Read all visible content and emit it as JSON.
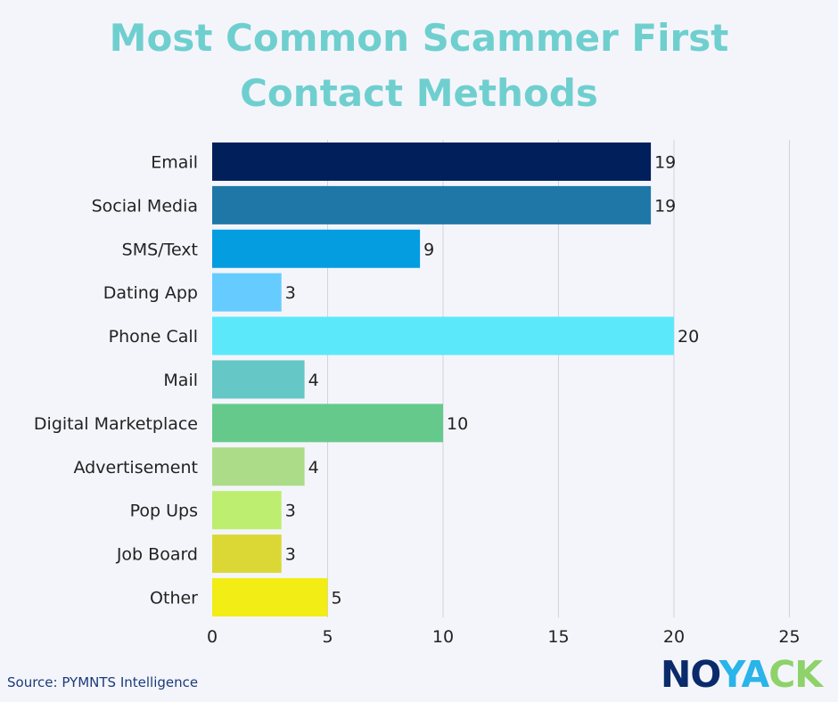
{
  "chart_data": {
    "type": "bar",
    "orientation": "horizontal",
    "title_lines": [
      "Most Common Scammer First",
      "Contact Methods"
    ],
    "categories": [
      "Email",
      "Social Media",
      "SMS/Text",
      "Dating App",
      "Phone Call",
      "Mail",
      "Digital Marketplace",
      "Advertisement",
      "Pop Ups",
      "Job Board",
      "Other"
    ],
    "values": [
      19,
      19,
      9,
      3,
      20,
      4,
      10,
      4,
      3,
      3,
      5
    ],
    "colors": [
      "#001f5b",
      "#1f77a8",
      "#039de0",
      "#66ccff",
      "#5ce8fb",
      "#66c7c7",
      "#66c98c",
      "#acdc88",
      "#bdee70",
      "#dbd836",
      "#f2ed14"
    ],
    "xlim": [
      0,
      25
    ],
    "xticks": [
      "0",
      "5",
      "10",
      "15",
      "20",
      "25"
    ],
    "grid": "vertical"
  },
  "footer": {
    "source": "Source: PYMNTS Intelligence",
    "logo_parts": [
      "NO",
      "YA",
      "CK"
    ]
  }
}
